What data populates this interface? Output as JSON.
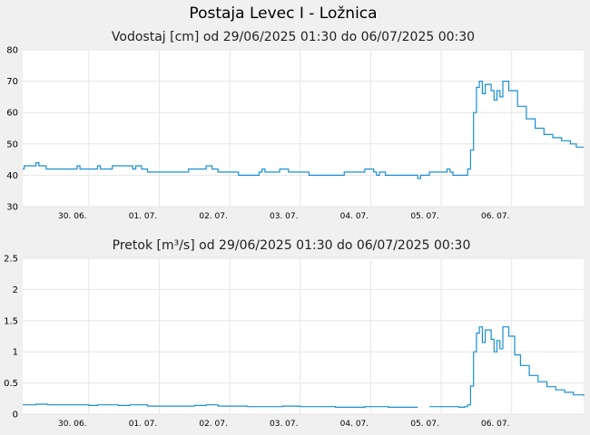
{
  "title": "Postaja Levec I - Ložnica",
  "chart_data": [
    {
      "type": "line",
      "title": "Vodostaj [cm] od 29/06/2025 01:30 do 06/07/2025 00:30",
      "x_range": [
        "29/06/2025 01:30",
        "06/07/2025 00:30"
      ],
      "ylim": [
        30,
        80
      ],
      "yticks": [
        "30",
        "40",
        "50",
        "60",
        "70",
        "80"
      ],
      "xticks": [
        {
          "label": "30. 06.",
          "time": "2025-06-30T00:00"
        },
        {
          "label": "01. 07.",
          "time": "2025-07-01T00:00"
        },
        {
          "label": "02. 07.",
          "time": "2025-07-02T00:00"
        },
        {
          "label": "03. 07.",
          "time": "2025-07-03T00:00"
        },
        {
          "label": "04. 07.",
          "time": "2025-07-04T00:00"
        },
        {
          "label": "05. 07.",
          "time": "2025-07-05T00:00"
        },
        {
          "label": "06. 07.",
          "time": "2025-07-06T00:00"
        }
      ],
      "grid": true,
      "color": "#1a8fd6",
      "series": [
        {
          "points": [
            [
              "2025-06-29T01:30",
              42
            ],
            [
              "2025-06-29T02:00",
              43
            ],
            [
              "2025-06-29T05:00",
              43
            ],
            [
              "2025-06-29T06:00",
              44
            ],
            [
              "2025-06-29T07:00",
              43
            ],
            [
              "2025-06-29T09:30",
              42
            ],
            [
              "2025-06-29T19:00",
              42
            ],
            [
              "2025-06-29T20:00",
              43
            ],
            [
              "2025-06-29T21:00",
              42
            ],
            [
              "2025-06-30T02:00",
              42
            ],
            [
              "2025-06-30T03:00",
              43
            ],
            [
              "2025-06-30T04:00",
              42
            ],
            [
              "2025-06-30T08:00",
              43
            ],
            [
              "2025-06-30T14:00",
              43
            ],
            [
              "2025-06-30T15:00",
              42
            ],
            [
              "2025-06-30T16:00",
              43
            ],
            [
              "2025-06-30T18:00",
              42
            ],
            [
              "2025-06-30T20:00",
              41
            ],
            [
              "2025-07-01T09:00",
              41
            ],
            [
              "2025-07-01T10:00",
              42
            ],
            [
              "2025-07-01T15:00",
              42
            ],
            [
              "2025-07-01T16:00",
              43
            ],
            [
              "2025-07-01T18:00",
              42
            ],
            [
              "2025-07-01T20:00",
              41
            ],
            [
              "2025-07-02T02:00",
              41
            ],
            [
              "2025-07-02T03:00",
              40
            ],
            [
              "2025-07-02T09:00",
              40
            ],
            [
              "2025-07-02T10:00",
              41
            ],
            [
              "2025-07-02T11:00",
              42
            ],
            [
              "2025-07-02T12:00",
              41
            ],
            [
              "2025-07-02T16:00",
              41
            ],
            [
              "2025-07-02T17:00",
              42
            ],
            [
              "2025-07-02T20:00",
              41
            ],
            [
              "2025-07-03T02:00",
              41
            ],
            [
              "2025-07-03T03:00",
              40
            ],
            [
              "2025-07-03T14:00",
              40
            ],
            [
              "2025-07-03T15:00",
              41
            ],
            [
              "2025-07-03T21:00",
              41
            ],
            [
              "2025-07-03T22:00",
              42
            ],
            [
              "2025-07-04T01:00",
              41
            ],
            [
              "2025-07-04T02:00",
              40
            ],
            [
              "2025-07-04T03:00",
              41
            ],
            [
              "2025-07-04T05:00",
              40
            ],
            [
              "2025-07-04T15:00",
              40
            ],
            [
              "2025-07-04T16:00",
              39
            ],
            [
              "2025-07-04T17:00",
              40
            ],
            [
              "2025-07-04T20:00",
              41
            ],
            [
              "2025-07-05T01:00",
              41
            ],
            [
              "2025-07-05T02:00",
              42
            ],
            [
              "2025-07-05T03:00",
              41
            ],
            [
              "2025-07-05T04:00",
              40
            ],
            [
              "2025-07-05T08:00",
              40
            ],
            [
              "2025-07-05T09:00",
              42
            ],
            [
              "2025-07-05T10:00",
              48
            ],
            [
              "2025-07-05T11:00",
              60
            ],
            [
              "2025-07-05T12:00",
              68
            ],
            [
              "2025-07-05T13:00",
              70
            ],
            [
              "2025-07-05T14:00",
              66
            ],
            [
              "2025-07-05T15:00",
              69
            ],
            [
              "2025-07-05T17:00",
              67
            ],
            [
              "2025-07-05T18:00",
              64
            ],
            [
              "2025-07-05T19:00",
              67
            ],
            [
              "2025-07-05T20:00",
              65
            ],
            [
              "2025-07-05T21:00",
              70
            ],
            [
              "2025-07-05T23:00",
              67
            ],
            [
              "2025-07-06T02:00",
              62
            ],
            [
              "2025-07-06T05:00",
              58
            ],
            [
              "2025-07-06T08:00",
              55
            ],
            [
              "2025-07-06T11:00",
              53
            ],
            [
              "2025-07-06T14:00",
              52
            ],
            [
              "2025-07-06T17:00",
              51
            ],
            [
              "2025-07-06T20:00",
              50
            ],
            [
              "2025-07-06T22:00",
              49
            ],
            [
              "2025-07-07T00:30",
              49
            ]
          ]
        }
      ]
    },
    {
      "type": "line",
      "title": "Pretok [m³/s] od 29/06/2025 01:30 do 06/07/2025 00:30",
      "x_range": [
        "29/06/2025 01:30",
        "06/07/2025 00:30"
      ],
      "ylim": [
        0,
        2.5
      ],
      "yticks": [
        "0",
        "0.5",
        "1",
        "1.5",
        "2",
        "2.5"
      ],
      "xticks": [
        {
          "label": "30. 06.",
          "time": "2025-06-30T00:00"
        },
        {
          "label": "01. 07.",
          "time": "2025-07-01T00:00"
        },
        {
          "label": "02. 07.",
          "time": "2025-07-02T00:00"
        },
        {
          "label": "03. 07.",
          "time": "2025-07-03T00:00"
        },
        {
          "label": "04. 07.",
          "time": "2025-07-04T00:00"
        },
        {
          "label": "05. 07.",
          "time": "2025-07-05T00:00"
        },
        {
          "label": "06. 07.",
          "time": "2025-07-06T00:00"
        }
      ],
      "grid": true,
      "color": "#1a8fd6",
      "series": [
        {
          "segments": [
            [
              [
                "2025-06-29T01:30",
                0.15
              ],
              [
                "2025-06-29T06:00",
                0.16
              ],
              [
                "2025-06-29T10:00",
                0.15
              ],
              [
                "2025-06-30T00:00",
                0.14
              ],
              [
                "2025-06-30T03:00",
                0.15
              ],
              [
                "2025-06-30T10:00",
                0.14
              ],
              [
                "2025-06-30T14:00",
                0.15
              ],
              [
                "2025-06-30T20:00",
                0.13
              ],
              [
                "2025-07-01T09:00",
                0.13
              ],
              [
                "2025-07-01T12:00",
                0.14
              ],
              [
                "2025-07-01T16:00",
                0.15
              ],
              [
                "2025-07-01T20:00",
                0.13
              ],
              [
                "2025-07-02T06:00",
                0.12
              ],
              [
                "2025-07-02T16:00",
                0.12
              ],
              [
                "2025-07-02T18:00",
                0.13
              ],
              [
                "2025-07-03T00:00",
                0.12
              ],
              [
                "2025-07-03T12:00",
                0.11
              ],
              [
                "2025-07-03T22:00",
                0.12
              ],
              [
                "2025-07-04T06:00",
                0.11
              ],
              [
                "2025-07-04T16:00",
                0.11
              ]
            ],
            [
              [
                "2025-07-04T20:00",
                0.12
              ],
              [
                "2025-07-05T02:00",
                0.12
              ],
              [
                "2025-07-05T06:00",
                0.11
              ],
              [
                "2025-07-05T08:00",
                0.12
              ],
              [
                "2025-07-05T09:00",
                0.15
              ],
              [
                "2025-07-05T10:00",
                0.45
              ],
              [
                "2025-07-05T11:00",
                1.0
              ],
              [
                "2025-07-05T12:00",
                1.3
              ],
              [
                "2025-07-05T13:00",
                1.4
              ],
              [
                "2025-07-05T14:00",
                1.15
              ],
              [
                "2025-07-05T15:00",
                1.35
              ],
              [
                "2025-07-05T17:00",
                1.2
              ],
              [
                "2025-07-05T18:00",
                1.0
              ],
              [
                "2025-07-05T19:00",
                1.18
              ],
              [
                "2025-07-05T20:00",
                1.05
              ],
              [
                "2025-07-05T21:00",
                1.4
              ],
              [
                "2025-07-05T23:00",
                1.25
              ],
              [
                "2025-07-06T01:00",
                0.95
              ],
              [
                "2025-07-06T03:00",
                0.78
              ],
              [
                "2025-07-06T06:00",
                0.62
              ],
              [
                "2025-07-06T09:00",
                0.52
              ],
              [
                "2025-07-06T12:00",
                0.44
              ],
              [
                "2025-07-06T15:00",
                0.39
              ],
              [
                "2025-07-06T18:00",
                0.35
              ],
              [
                "2025-07-06T21:00",
                0.31
              ],
              [
                "2025-07-07T00:30",
                0.29
              ]
            ]
          ]
        }
      ]
    }
  ]
}
